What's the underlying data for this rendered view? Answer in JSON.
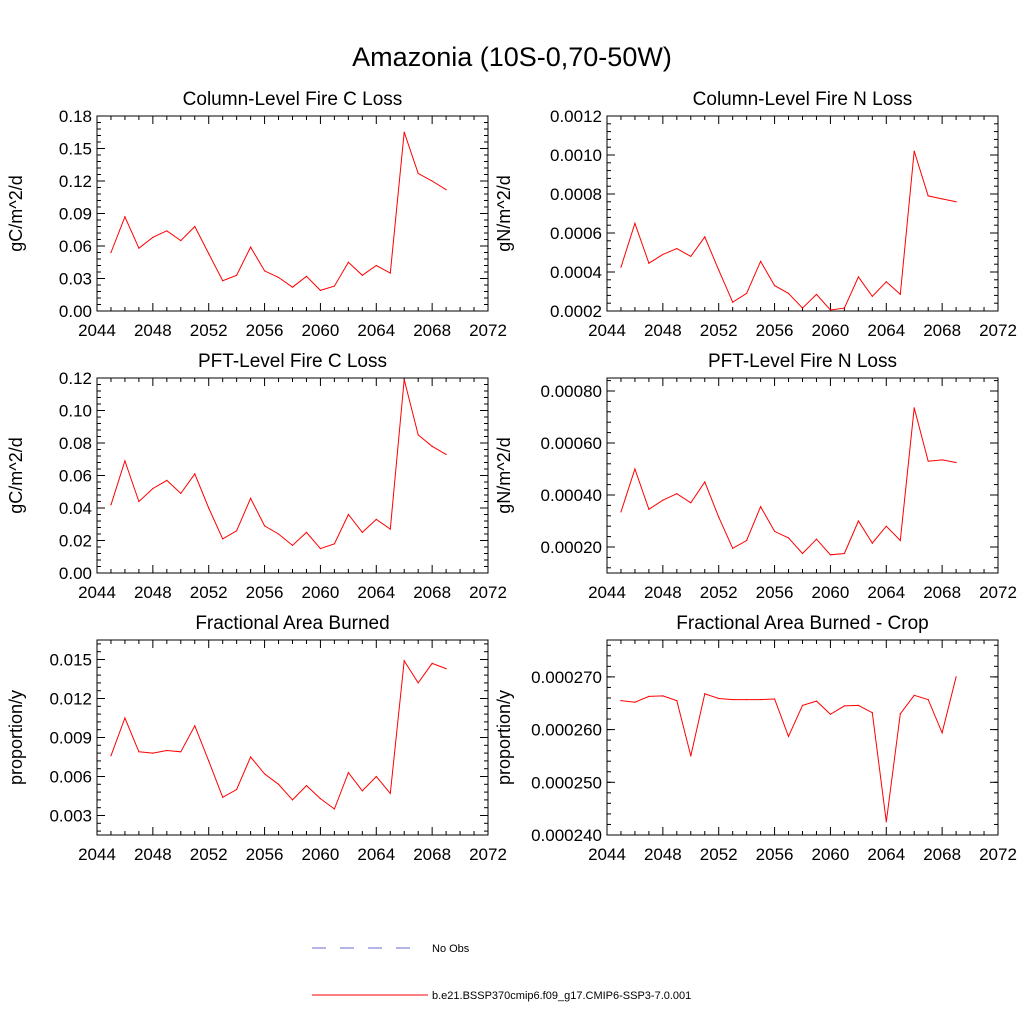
{
  "figure_title": "Amazonia (10S-0,70-50W)",
  "colors": {
    "model": "#ff0000",
    "obs": "#6a6ad0",
    "axis": "#000000"
  },
  "legend": {
    "items": [
      {
        "label": "No Obs",
        "style": "dashed",
        "color": "#6a6ad0"
      },
      {
        "label": "b.e21.BSSP370cmip6.f09_g17.CMIP6-SSP3-7.0.001",
        "style": "solid",
        "color": "#ff0000"
      }
    ]
  },
  "chart_data": [
    {
      "type": "line",
      "title": "Column-Level Fire C Loss",
      "xlabel": "",
      "ylabel": "gC/m^2/d",
      "xlim": [
        2044,
        2072
      ],
      "ylim": [
        0,
        0.18
      ],
      "xticks": [
        "2044",
        "2048",
        "2052",
        "2056",
        "2060",
        "2064",
        "2068",
        "2072"
      ],
      "yticks": [
        "0.00",
        "0.03",
        "0.06",
        "0.09",
        "0.12",
        "0.15",
        "0.18"
      ],
      "x": [
        2045,
        2046,
        2047,
        2048,
        2049,
        2050,
        2051,
        2052,
        2053,
        2054,
        2055,
        2056,
        2057,
        2058,
        2059,
        2060,
        2061,
        2062,
        2063,
        2064,
        2065,
        2066,
        2067,
        2068,
        2069
      ],
      "series": [
        {
          "values": [
            0.054,
            0.087,
            0.058,
            0.068,
            0.074,
            0.065,
            0.078,
            0.053,
            0.028,
            0.033,
            0.059,
            0.037,
            0.031,
            0.022,
            0.032,
            0.019,
            0.023,
            0.045,
            0.033,
            0.042,
            0.035,
            0.165,
            0.127,
            0.12,
            0.112
          ]
        }
      ]
    },
    {
      "type": "line",
      "title": "Column-Level Fire N Loss",
      "xlabel": "",
      "ylabel": "gN/m^2/d",
      "xlim": [
        2044,
        2072
      ],
      "ylim": [
        0.0002,
        0.0012
      ],
      "xticks": [
        "2044",
        "2048",
        "2052",
        "2056",
        "2060",
        "2064",
        "2068",
        "2072"
      ],
      "yticks": [
        "0.0002",
        "0.0004",
        "0.0006",
        "0.0008",
        "0.0010",
        "0.0012"
      ],
      "x": [
        2045,
        2046,
        2047,
        2048,
        2049,
        2050,
        2051,
        2052,
        2053,
        2054,
        2055,
        2056,
        2057,
        2058,
        2059,
        2060,
        2061,
        2062,
        2063,
        2064,
        2065,
        2066,
        2067,
        2068,
        2069
      ],
      "series": [
        {
          "values": [
            0.000425,
            0.00065,
            0.000445,
            0.00049,
            0.00052,
            0.00048,
            0.00058,
            0.00041,
            0.000245,
            0.00029,
            0.000455,
            0.00033,
            0.00029,
            0.000215,
            0.000285,
            0.000205,
            0.000215,
            0.000375,
            0.000275,
            0.00035,
            0.000285,
            0.00102,
            0.00079,
            0.000775,
            0.00076
          ]
        }
      ]
    },
    {
      "type": "line",
      "title": "PFT-Level Fire C Loss",
      "xlabel": "",
      "ylabel": "gC/m^2/d",
      "xlim": [
        2044,
        2072
      ],
      "ylim": [
        0,
        0.12
      ],
      "xticks": [
        "2044",
        "2048",
        "2052",
        "2056",
        "2060",
        "2064",
        "2068",
        "2072"
      ],
      "yticks": [
        "0.00",
        "0.02",
        "0.04",
        "0.06",
        "0.08",
        "0.10",
        "0.12"
      ],
      "x": [
        2045,
        2046,
        2047,
        2048,
        2049,
        2050,
        2051,
        2052,
        2053,
        2054,
        2055,
        2056,
        2057,
        2058,
        2059,
        2060,
        2061,
        2062,
        2063,
        2064,
        2065,
        2066,
        2067,
        2068,
        2069
      ],
      "series": [
        {
          "values": [
            0.042,
            0.069,
            0.044,
            0.052,
            0.057,
            0.049,
            0.061,
            0.04,
            0.021,
            0.026,
            0.046,
            0.029,
            0.024,
            0.017,
            0.025,
            0.015,
            0.018,
            0.036,
            0.025,
            0.033,
            0.027,
            0.119,
            0.085,
            0.078,
            0.073
          ]
        }
      ]
    },
    {
      "type": "line",
      "title": "PFT-Level Fire N Loss",
      "xlabel": "",
      "ylabel": "gN/m^2/d",
      "xlim": [
        2044,
        2072
      ],
      "ylim": [
        0.0001,
        0.00085
      ],
      "xticks": [
        "2044",
        "2048",
        "2052",
        "2056",
        "2060",
        "2064",
        "2068",
        "2072"
      ],
      "yticks": [
        "0.00020",
        "0.00040",
        "0.00060",
        "0.00080"
      ],
      "ytick_values": [
        0.0002,
        0.0004,
        0.0006,
        0.0008
      ],
      "x": [
        2045,
        2046,
        2047,
        2048,
        2049,
        2050,
        2051,
        2052,
        2053,
        2054,
        2055,
        2056,
        2057,
        2058,
        2059,
        2060,
        2061,
        2062,
        2063,
        2064,
        2065,
        2066,
        2067,
        2068,
        2069
      ],
      "series": [
        {
          "values": [
            0.000335,
            0.0005,
            0.000345,
            0.00038,
            0.000405,
            0.00037,
            0.00045,
            0.000315,
            0.000195,
            0.000225,
            0.000355,
            0.00026,
            0.000235,
            0.000175,
            0.00023,
            0.00017,
            0.000175,
            0.0003,
            0.000215,
            0.00028,
            0.000225,
            0.000735,
            0.00053,
            0.000535,
            0.000525
          ]
        }
      ]
    },
    {
      "type": "line",
      "title": "Fractional Area Burned",
      "xlabel": "",
      "ylabel": "proportion/y",
      "xlim": [
        2044,
        2072
      ],
      "ylim": [
        0.0015,
        0.0165
      ],
      "xticks": [
        "2044",
        "2048",
        "2052",
        "2056",
        "2060",
        "2064",
        "2068",
        "2072"
      ],
      "yticks": [
        "0.003",
        "0.006",
        "0.009",
        "0.012",
        "0.015"
      ],
      "ytick_values": [
        0.003,
        0.006,
        0.009,
        0.012,
        0.015
      ],
      "x": [
        2045,
        2046,
        2047,
        2048,
        2049,
        2050,
        2051,
        2052,
        2053,
        2054,
        2055,
        2056,
        2057,
        2058,
        2059,
        2060,
        2061,
        2062,
        2063,
        2064,
        2065,
        2066,
        2067,
        2068,
        2069
      ],
      "series": [
        {
          "values": [
            0.0076,
            0.0105,
            0.0079,
            0.0078,
            0.008,
            0.0079,
            0.0099,
            0.0072,
            0.0044,
            0.005,
            0.0075,
            0.0062,
            0.0054,
            0.0042,
            0.0053,
            0.0043,
            0.0035,
            0.0063,
            0.0049,
            0.006,
            0.0047,
            0.0149,
            0.0132,
            0.0147,
            0.0143
          ]
        }
      ]
    },
    {
      "type": "line",
      "title": "Fractional Area Burned - Crop",
      "xlabel": "",
      "ylabel": "proportion/y",
      "xlim": [
        2044,
        2072
      ],
      "ylim": [
        0.00024,
        0.000277
      ],
      "xticks": [
        "2044",
        "2048",
        "2052",
        "2056",
        "2060",
        "2064",
        "2068",
        "2072"
      ],
      "yticks": [
        "0.000240",
        "0.000250",
        "0.000260",
        "0.000270"
      ],
      "ytick_values": [
        0.00024,
        0.00025,
        0.00026,
        0.00027
      ],
      "x": [
        2045,
        2046,
        2047,
        2048,
        2049,
        2050,
        2051,
        2052,
        2053,
        2054,
        2055,
        2056,
        2057,
        2058,
        2059,
        2060,
        2061,
        2062,
        2063,
        2064,
        2065,
        2066,
        2067,
        2068,
        2069
      ],
      "series": [
        {
          "values": [
            0.0002655,
            0.0002652,
            0.0002663,
            0.0002664,
            0.0002655,
            0.000255,
            0.0002668,
            0.0002659,
            0.0002657,
            0.0002657,
            0.0002657,
            0.0002658,
            0.0002587,
            0.0002646,
            0.0002654,
            0.0002629,
            0.0002645,
            0.0002646,
            0.0002632,
            0.0002425,
            0.000263,
            0.0002665,
            0.0002657,
            0.0002594,
            0.00027
          ]
        }
      ]
    }
  ]
}
